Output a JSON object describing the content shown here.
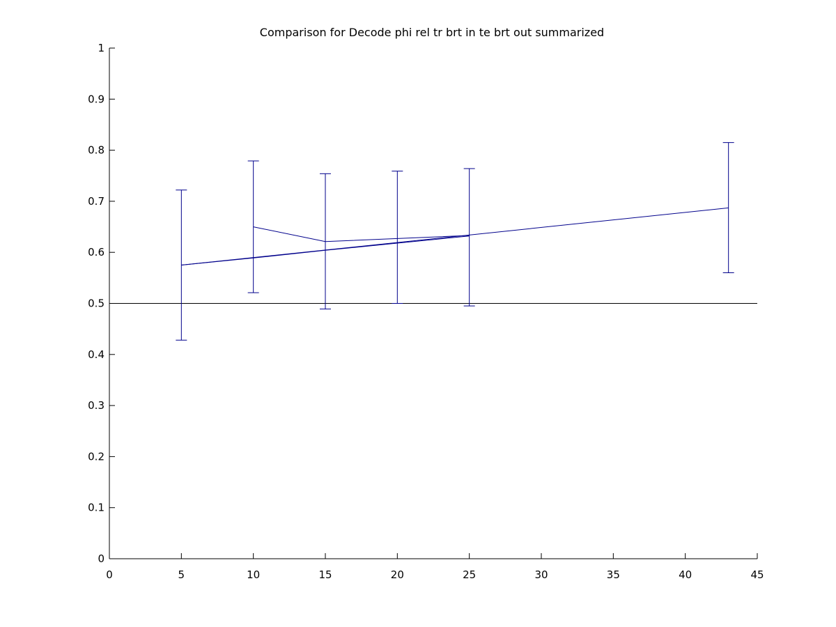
{
  "chart_data": {
    "type": "line",
    "title": "Comparison for Decode phi rel tr brt in te brt out  summarized",
    "xlabel": "",
    "ylabel": "",
    "xlim": [
      0,
      45
    ],
    "ylim": [
      0,
      1
    ],
    "xticks": [
      0,
      5,
      10,
      15,
      20,
      25,
      30,
      35,
      40,
      45
    ],
    "yticks": [
      0,
      0.1,
      0.2,
      0.3,
      0.4,
      0.5,
      0.6,
      0.7,
      0.8,
      0.9,
      1
    ],
    "xtick_labels": [
      "0",
      "5",
      "10",
      "15",
      "20",
      "25",
      "30",
      "35",
      "40",
      "45"
    ],
    "ytick_labels": [
      "0",
      "0.1",
      "0.2",
      "0.3",
      "0.4",
      "0.5",
      "0.6",
      "0.7",
      "0.8",
      "0.9",
      "1"
    ],
    "grid": false,
    "legend": false,
    "reference_line": {
      "y": 0.5,
      "color": "#000000"
    },
    "series_color": "#00008B",
    "series": [
      {
        "x": [
          5,
          43
        ],
        "y": [
          0.575,
          0.687
        ]
      },
      {
        "x": [
          10,
          15,
          25
        ],
        "y": [
          0.65,
          0.621,
          0.633
        ]
      },
      {
        "x": [
          5,
          10,
          15,
          20,
          25
        ],
        "y": [
          0.575,
          0.589,
          0.604,
          0.618,
          0.632
        ]
      }
    ],
    "errorbars": [
      {
        "x": 5,
        "low": 0.428,
        "high": 0.722
      },
      {
        "x": 10,
        "low": 0.521,
        "high": 0.779
      },
      {
        "x": 15,
        "low": 0.489,
        "high": 0.754
      },
      {
        "x": 20,
        "low": 0.5,
        "high": 0.759
      },
      {
        "x": 25,
        "low": 0.495,
        "high": 0.764
      },
      {
        "x": 43,
        "low": 0.56,
        "high": 0.815
      }
    ]
  }
}
